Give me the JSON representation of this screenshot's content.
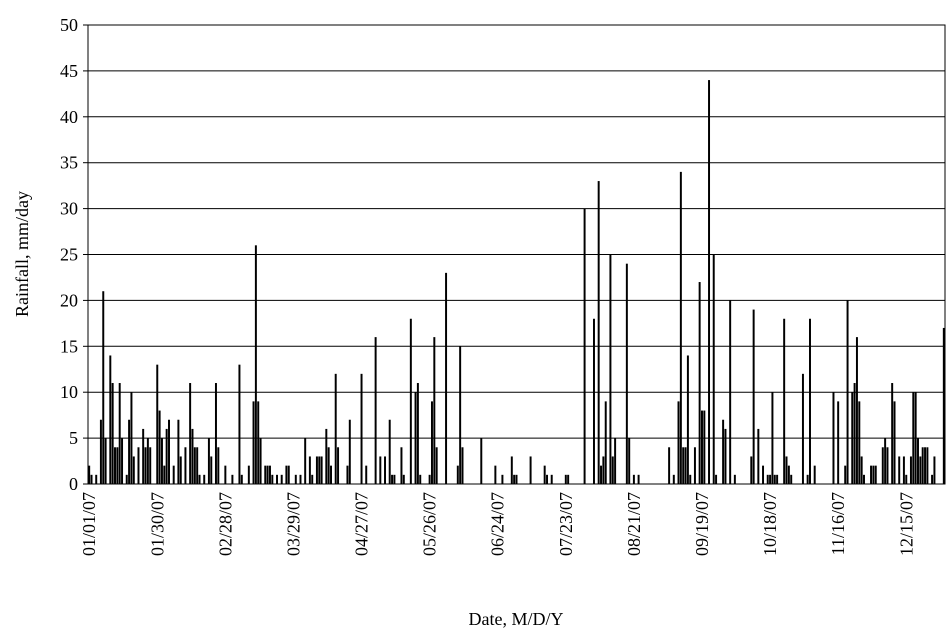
{
  "chart_data": {
    "type": "bar",
    "xlabel": "Date, M/D/Y",
    "ylabel": "Rainfall,  mm/day",
    "categories": [
      "01/01/07",
      null,
      null,
      null,
      null,
      null,
      null,
      null,
      null,
      null,
      null,
      null,
      null,
      null,
      null,
      null,
      null,
      null,
      null,
      null,
      null,
      null,
      null,
      null,
      null,
      null,
      null,
      null,
      null,
      "01/30/07",
      null,
      null,
      null,
      null,
      null,
      null,
      null,
      null,
      null,
      null,
      null,
      null,
      null,
      null,
      null,
      null,
      null,
      null,
      null,
      null,
      null,
      null,
      null,
      null,
      null,
      null,
      null,
      null,
      "02/28/07",
      null,
      null,
      null,
      null,
      null,
      null,
      null,
      null,
      null,
      null,
      null,
      null,
      null,
      null,
      null,
      null,
      null,
      null,
      null,
      null,
      null,
      null,
      null,
      null,
      null,
      null,
      null,
      null,
      "03/29/07",
      null,
      null,
      null,
      null,
      null,
      null,
      null,
      null,
      null,
      null,
      null,
      null,
      null,
      null,
      null,
      null,
      null,
      null,
      null,
      null,
      null,
      null,
      null,
      null,
      null,
      null,
      null,
      null,
      "04/27/07",
      null,
      null,
      null,
      null,
      null,
      null,
      null,
      null,
      null,
      null,
      null,
      null,
      null,
      null,
      null,
      null,
      null,
      null,
      null,
      null,
      null,
      null,
      null,
      null,
      null,
      null,
      null,
      null,
      "05/26/07",
      null,
      null,
      null,
      null,
      null,
      null,
      null,
      null,
      null,
      null,
      null,
      null,
      null,
      null,
      null,
      null,
      null,
      null,
      null,
      null,
      null,
      null,
      null,
      null,
      null,
      null,
      null,
      null,
      "06/24/07",
      null,
      null,
      null,
      null,
      null,
      null,
      null,
      null,
      null,
      null,
      null,
      null,
      null,
      null,
      null,
      null,
      null,
      null,
      null,
      null,
      null,
      null,
      null,
      null,
      null,
      null,
      null,
      null,
      "07/23/07",
      null,
      null,
      null,
      null,
      null,
      null,
      null,
      null,
      null,
      null,
      null,
      null,
      null,
      null,
      null,
      null,
      null,
      null,
      null,
      null,
      null,
      null,
      null,
      null,
      null,
      null,
      null,
      null,
      "08/21/07",
      null,
      null,
      null,
      null,
      null,
      null,
      null,
      null,
      null,
      null,
      null,
      null,
      null,
      null,
      null,
      null,
      null,
      null,
      null,
      null,
      null,
      null,
      null,
      null,
      null,
      null,
      null,
      null,
      "09/19/07",
      null,
      null,
      null,
      null,
      null,
      null,
      null,
      null,
      null,
      null,
      null,
      null,
      null,
      null,
      null,
      null,
      null,
      null,
      null,
      null,
      null,
      null,
      null,
      null,
      null,
      null,
      null,
      null,
      "10/18/07",
      null,
      null,
      null,
      null,
      null,
      null,
      null,
      null,
      null,
      null,
      null,
      null,
      null,
      null,
      null,
      null,
      null,
      null,
      null,
      null,
      null,
      null,
      null,
      null,
      null,
      null,
      null,
      null,
      "11/16/07",
      null,
      null,
      null,
      null,
      null,
      null,
      null,
      null,
      null,
      null,
      null,
      null,
      null,
      null,
      null,
      null,
      null,
      null,
      null,
      null,
      null,
      null,
      null,
      null,
      null,
      null,
      null,
      null,
      "12/15/07",
      null,
      null,
      null,
      null,
      null,
      null,
      null,
      null,
      null,
      null,
      null,
      null,
      null,
      null,
      null,
      null
    ],
    "values": [
      2,
      1,
      0,
      1,
      0,
      7,
      21,
      5,
      0,
      14,
      11,
      4,
      4,
      11,
      5,
      0,
      1,
      7,
      10,
      3,
      0,
      4,
      0,
      6,
      4,
      5,
      4,
      0,
      0,
      13,
      8,
      5,
      2,
      6,
      7,
      0,
      2,
      0,
      7,
      3,
      0,
      4,
      0,
      11,
      6,
      4,
      4,
      1,
      0,
      1,
      0,
      5,
      3,
      0,
      11,
      4,
      0,
      0,
      2,
      0,
      0,
      1,
      0,
      0,
      13,
      1,
      0,
      0,
      2,
      0,
      9,
      26,
      9,
      5,
      0,
      2,
      2,
      2,
      1,
      0,
      1,
      0,
      1,
      0,
      2,
      2,
      0,
      0,
      1,
      0,
      1,
      0,
      5,
      0,
      3,
      1,
      0,
      3,
      3,
      3,
      0,
      6,
      4,
      2,
      0,
      12,
      4,
      0,
      0,
      0,
      2,
      7,
      0,
      0,
      0,
      0,
      12,
      0,
      2,
      0,
      0,
      0,
      16,
      0,
      3,
      0,
      3,
      0,
      7,
      1,
      1,
      0,
      0,
      4,
      1,
      0,
      0,
      18,
      0,
      10,
      11,
      1,
      0,
      0,
      0,
      1,
      9,
      16,
      4,
      0,
      0,
      0,
      23,
      0,
      0,
      0,
      0,
      2,
      15,
      4,
      0,
      0,
      0,
      0,
      0,
      0,
      0,
      5,
      0,
      0,
      0,
      0,
      0,
      2,
      0,
      0,
      1,
      0,
      0,
      0,
      3,
      1,
      1,
      0,
      0,
      0,
      0,
      0,
      3,
      0,
      0,
      0,
      0,
      0,
      2,
      1,
      0,
      1,
      0,
      0,
      0,
      0,
      0,
      1,
      1,
      0,
      0,
      0,
      0,
      0,
      0,
      30,
      0,
      0,
      0,
      18,
      0,
      33,
      2,
      3,
      9,
      0,
      25,
      3,
      5,
      0,
      0,
      0,
      0,
      24,
      5,
      0,
      1,
      0,
      1,
      0,
      0,
      0,
      0,
      0,
      0,
      0,
      0,
      0,
      0,
      0,
      0,
      4,
      0,
      1,
      0,
      9,
      34,
      4,
      4,
      14,
      1,
      0,
      4,
      0,
      22,
      8,
      8,
      0,
      44,
      0,
      25,
      1,
      0,
      0,
      7,
      6,
      0,
      20,
      0,
      1,
      0,
      0,
      0,
      0,
      0,
      0,
      3,
      19,
      0,
      6,
      0,
      2,
      0,
      1,
      1,
      10,
      1,
      1,
      0,
      0,
      18,
      3,
      2,
      1,
      0,
      0,
      0,
      0,
      12,
      0,
      1,
      18,
      0,
      2,
      0,
      0,
      0,
      0,
      0,
      0,
      0,
      10,
      0,
      9,
      0,
      0,
      2,
      20,
      0,
      10,
      11,
      16,
      9,
      3,
      1,
      0,
      0,
      2,
      2,
      2,
      0,
      0,
      4,
      5,
      4,
      0,
      11,
      9,
      0,
      3,
      0,
      3,
      1,
      0,
      3,
      10,
      10,
      5,
      3,
      4,
      4,
      4,
      0,
      1,
      3,
      0,
      0,
      0,
      17
    ],
    "color": "#000000",
    "ylim": [
      0,
      50
    ],
    "yticks": [
      0,
      5,
      10,
      15,
      20,
      25,
      30,
      35,
      40,
      45,
      50
    ],
    "grid": true
  }
}
